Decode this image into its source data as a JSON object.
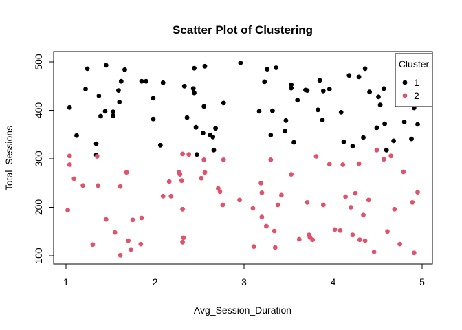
{
  "chart_data": {
    "type": "scatter",
    "title": "Scatter Plot of Clustering",
    "xlabel": "Avg_Session_Duration",
    "ylabel": "Total_Sessions",
    "xlim": [
      1,
      5
    ],
    "ylim": [
      100,
      500
    ],
    "x_ticks": [
      "1",
      "2",
      "3",
      "4",
      "5"
    ],
    "y_ticks": [
      "100",
      "200",
      "300",
      "400",
      "500"
    ],
    "grid": false,
    "legend": {
      "title": "Cluster",
      "placement": "top-right"
    },
    "series": [
      {
        "name": "1",
        "color": "#000000",
        "points": [
          [
            1.04,
            406
          ],
          [
            1.12,
            348
          ],
          [
            1.22,
            444
          ],
          [
            1.24,
            486
          ],
          [
            1.34,
            331
          ],
          [
            1.34,
            308
          ],
          [
            1.37,
            430
          ],
          [
            1.39,
            388
          ],
          [
            1.44,
            398
          ],
          [
            1.45,
            493
          ],
          [
            1.53,
            397
          ],
          [
            1.53,
            389
          ],
          [
            1.59,
            441
          ],
          [
            1.6,
            417
          ],
          [
            1.62,
            460
          ],
          [
            1.66,
            484
          ],
          [
            1.85,
            460
          ],
          [
            1.9,
            460
          ],
          [
            1.98,
            425
          ],
          [
            1.98,
            382
          ],
          [
            2.06,
            328
          ],
          [
            2.09,
            457
          ],
          [
            2.33,
            450
          ],
          [
            2.36,
            385
          ],
          [
            2.43,
            445
          ],
          [
            2.44,
            436
          ],
          [
            2.44,
            487
          ],
          [
            2.46,
            365
          ],
          [
            2.47,
            309
          ],
          [
            2.54,
            353
          ],
          [
            2.55,
            408
          ],
          [
            2.56,
            491
          ],
          [
            2.62,
            349
          ],
          [
            2.65,
            345
          ],
          [
            2.66,
            318
          ],
          [
            2.68,
            363
          ],
          [
            2.77,
            415
          ],
          [
            2.96,
            498
          ],
          [
            3.17,
            398
          ],
          [
            3.23,
            459
          ],
          [
            3.26,
            485
          ],
          [
            3.3,
            349
          ],
          [
            3.32,
            399
          ],
          [
            3.36,
            488
          ],
          [
            3.46,
            357
          ],
          [
            3.47,
            379
          ],
          [
            3.53,
            453
          ],
          [
            3.53,
            446
          ],
          [
            3.56,
            334
          ],
          [
            3.6,
            421
          ],
          [
            3.69,
            442
          ],
          [
            3.71,
            441
          ],
          [
            3.83,
            401
          ],
          [
            3.85,
            462
          ],
          [
            3.88,
            380
          ],
          [
            3.89,
            440
          ],
          [
            3.96,
            444
          ],
          [
            4.09,
            396
          ],
          [
            4.12,
            335
          ],
          [
            4.18,
            472
          ],
          [
            4.22,
            326
          ],
          [
            4.29,
            469
          ],
          [
            4.34,
            344
          ],
          [
            4.36,
            486
          ],
          [
            4.41,
            438
          ],
          [
            4.49,
            364
          ],
          [
            4.51,
            428
          ],
          [
            4.53,
            411
          ],
          [
            4.57,
            445
          ],
          [
            4.58,
            372
          ],
          [
            4.6,
            318
          ],
          [
            4.68,
            337
          ],
          [
            4.8,
            376
          ],
          [
            4.88,
            341
          ],
          [
            4.91,
            405
          ],
          [
            4.95,
            371
          ]
        ]
      },
      {
        "name": "2",
        "color": "#DF536B",
        "points": [
          [
            1.02,
            194
          ],
          [
            1.04,
            306
          ],
          [
            1.04,
            288
          ],
          [
            1.09,
            259
          ],
          [
            1.19,
            245
          ],
          [
            1.3,
            123
          ],
          [
            1.35,
            305
          ],
          [
            1.36,
            245
          ],
          [
            1.45,
            175
          ],
          [
            1.55,
            148
          ],
          [
            1.61,
            101
          ],
          [
            1.61,
            243
          ],
          [
            1.68,
            272
          ],
          [
            1.7,
            131
          ],
          [
            1.73,
            113
          ],
          [
            1.75,
            174
          ],
          [
            1.84,
            124
          ],
          [
            1.85,
            178
          ],
          [
            2.09,
            223
          ],
          [
            2.16,
            253
          ],
          [
            2.18,
            223
          ],
          [
            2.27,
            272
          ],
          [
            2.28,
            268
          ],
          [
            2.3,
            255
          ],
          [
            2.31,
            310
          ],
          [
            2.31,
            196
          ],
          [
            2.31,
            128
          ],
          [
            2.32,
            137
          ],
          [
            2.38,
            309
          ],
          [
            2.52,
            260
          ],
          [
            2.55,
            298
          ],
          [
            2.56,
            272
          ],
          [
            2.71,
            239
          ],
          [
            2.73,
            232
          ],
          [
            2.76,
            205
          ],
          [
            2.77,
            298
          ],
          [
            2.95,
            215
          ],
          [
            3.1,
            198
          ],
          [
            3.11,
            119
          ],
          [
            3.19,
            250
          ],
          [
            3.2,
            230
          ],
          [
            3.2,
            180
          ],
          [
            3.25,
            161
          ],
          [
            3.3,
            298
          ],
          [
            3.34,
            151
          ],
          [
            3.35,
            117
          ],
          [
            3.38,
            205
          ],
          [
            3.42,
            225
          ],
          [
            3.53,
            268
          ],
          [
            3.62,
            134
          ],
          [
            3.71,
            210
          ],
          [
            3.73,
            143
          ],
          [
            3.74,
            138
          ],
          [
            3.77,
            133
          ],
          [
            3.81,
            305
          ],
          [
            3.89,
            205
          ],
          [
            3.96,
            289
          ],
          [
            4.02,
            154
          ],
          [
            4.08,
            152
          ],
          [
            4.11,
            288
          ],
          [
            4.14,
            222
          ],
          [
            4.2,
            200
          ],
          [
            4.22,
            143
          ],
          [
            4.25,
            229
          ],
          [
            4.29,
            290
          ],
          [
            4.3,
            133
          ],
          [
            4.34,
            184
          ],
          [
            4.36,
            131
          ],
          [
            4.4,
            215
          ],
          [
            4.46,
            108
          ],
          [
            4.49,
            318
          ],
          [
            4.57,
            299
          ],
          [
            4.61,
            150
          ],
          [
            4.65,
            306
          ],
          [
            4.69,
            196
          ],
          [
            4.75,
            124
          ],
          [
            4.79,
            273
          ],
          [
            4.89,
            210
          ],
          [
            4.91,
            106
          ],
          [
            4.95,
            231
          ]
        ]
      }
    ]
  }
}
